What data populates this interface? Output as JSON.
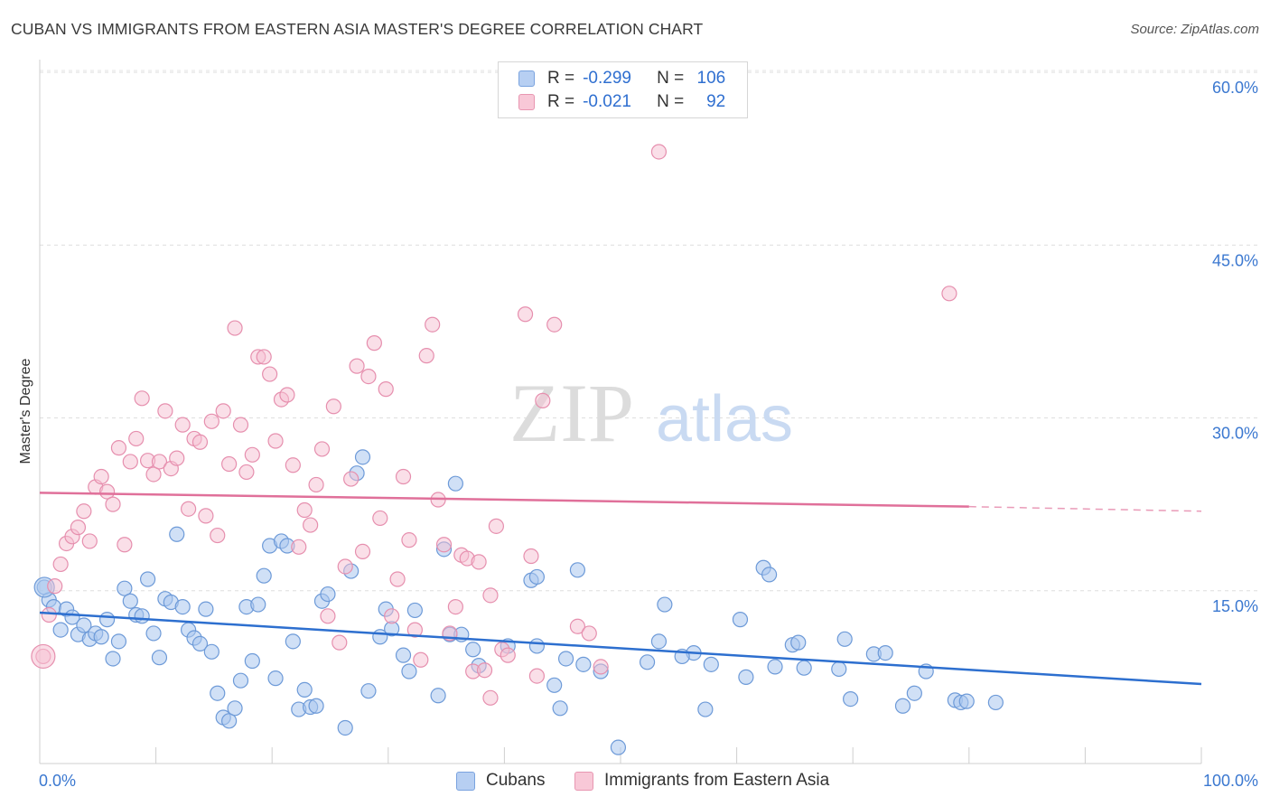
{
  "title": "CUBAN VS IMMIGRANTS FROM EASTERN ASIA MASTER'S DEGREE CORRELATION CHART",
  "source": "Source: ZipAtlas.com",
  "watermark": {
    "zip": "ZIP",
    "atlas": "atlas"
  },
  "legend": {
    "rows": [
      {
        "r_label": "R =",
        "r_value": "-0.299",
        "n_label": "N =",
        "n_value": "106"
      },
      {
        "r_label": "R =",
        "r_value": "-0.021",
        "n_label": "N =",
        "n_value": "92"
      }
    ]
  },
  "chart_data": {
    "type": "scatter",
    "ylabel": "Master's Degree",
    "xlim": [
      0,
      100
    ],
    "ylim": [
      0,
      60
    ],
    "x_ticks": [
      0,
      100
    ],
    "x_tick_labels": [
      "0.0%",
      "100.0%"
    ],
    "y_ticks": [
      15,
      30,
      45,
      60
    ],
    "y_tick_labels": [
      "15.0%",
      "30.0%",
      "45.0%",
      "60.0%"
    ],
    "grid": true,
    "colors": {
      "blue_fill": "#a9c6ef",
      "blue_stroke": "#6d9ad8",
      "blue_line": "#2d6fcf",
      "pink_fill": "#f6bfd1",
      "pink_stroke": "#e68fae",
      "pink_line": "#e0709a",
      "axis_text": "#3b78d0"
    },
    "series": [
      {
        "name": "Cubans",
        "color": "#2d6fcf",
        "trend": {
          "x0": 0,
          "y0": 13.1,
          "x1": 100,
          "y1": 6.9
        },
        "points": [
          [
            0.4,
            15.3
          ],
          [
            0.8,
            14.2
          ],
          [
            1.2,
            13.6
          ],
          [
            1.8,
            11.6
          ],
          [
            2.3,
            13.4
          ],
          [
            2.8,
            12.7
          ],
          [
            3.3,
            11.2
          ],
          [
            3.8,
            12.0
          ],
          [
            4.3,
            10.8
          ],
          [
            4.8,
            11.3
          ],
          [
            5.3,
            11.0
          ],
          [
            5.8,
            12.5
          ],
          [
            6.3,
            9.1
          ],
          [
            6.8,
            10.6
          ],
          [
            7.3,
            15.2
          ],
          [
            7.8,
            14.1
          ],
          [
            8.3,
            12.9
          ],
          [
            8.8,
            12.8
          ],
          [
            9.3,
            16.0
          ],
          [
            9.8,
            11.3
          ],
          [
            10.3,
            9.2
          ],
          [
            10.8,
            14.3
          ],
          [
            11.3,
            14.0
          ],
          [
            11.8,
            19.9
          ],
          [
            12.3,
            13.6
          ],
          [
            12.8,
            11.6
          ],
          [
            13.3,
            10.9
          ],
          [
            13.8,
            10.4
          ],
          [
            14.3,
            13.4
          ],
          [
            14.8,
            9.7
          ],
          [
            15.3,
            6.1
          ],
          [
            15.8,
            4.0
          ],
          [
            16.3,
            3.7
          ],
          [
            16.8,
            4.8
          ],
          [
            17.3,
            7.2
          ],
          [
            17.8,
            13.6
          ],
          [
            18.3,
            8.9
          ],
          [
            18.8,
            13.8
          ],
          [
            19.3,
            16.3
          ],
          [
            19.8,
            18.9
          ],
          [
            20.3,
            7.4
          ],
          [
            20.8,
            19.3
          ],
          [
            21.3,
            18.9
          ],
          [
            21.8,
            10.6
          ],
          [
            22.3,
            4.7
          ],
          [
            22.8,
            6.4
          ],
          [
            23.3,
            4.9
          ],
          [
            23.8,
            5.0
          ],
          [
            24.3,
            14.1
          ],
          [
            24.8,
            14.7
          ],
          [
            26.3,
            3.1
          ],
          [
            26.8,
            16.7
          ],
          [
            27.3,
            25.2
          ],
          [
            27.8,
            26.6
          ],
          [
            28.3,
            6.3
          ],
          [
            29.3,
            11.0
          ],
          [
            29.8,
            13.4
          ],
          [
            30.3,
            11.7
          ],
          [
            31.3,
            9.4
          ],
          [
            31.8,
            8.0
          ],
          [
            32.3,
            13.3
          ],
          [
            34.3,
            5.9
          ],
          [
            34.8,
            18.6
          ],
          [
            35.3,
            11.2
          ],
          [
            36.3,
            11.2
          ],
          [
            35.8,
            24.3
          ],
          [
            37.3,
            9.9
          ],
          [
            37.8,
            8.5
          ],
          [
            40.3,
            10.2
          ],
          [
            42.8,
            10.2
          ],
          [
            42.3,
            15.9
          ],
          [
            42.8,
            16.2
          ],
          [
            44.3,
            6.8
          ],
          [
            44.8,
            4.8
          ],
          [
            45.3,
            9.1
          ],
          [
            46.8,
            8.6
          ],
          [
            46.3,
            16.8
          ],
          [
            48.3,
            8.0
          ],
          [
            49.8,
            1.4
          ],
          [
            52.3,
            8.8
          ],
          [
            53.3,
            10.6
          ],
          [
            53.8,
            13.8
          ],
          [
            56.3,
            9.6
          ],
          [
            55.3,
            9.3
          ],
          [
            57.3,
            4.7
          ],
          [
            57.8,
            8.6
          ],
          [
            60.3,
            12.5
          ],
          [
            60.8,
            7.5
          ],
          [
            62.3,
            17.0
          ],
          [
            62.8,
            16.4
          ],
          [
            63.3,
            8.4
          ],
          [
            64.8,
            10.3
          ],
          [
            65.3,
            10.5
          ],
          [
            65.8,
            8.3
          ],
          [
            68.8,
            8.2
          ],
          [
            69.3,
            10.8
          ],
          [
            69.8,
            5.6
          ],
          [
            71.8,
            9.5
          ],
          [
            72.8,
            9.6
          ],
          [
            74.3,
            5.0
          ],
          [
            75.3,
            6.1
          ],
          [
            76.3,
            8.0
          ],
          [
            78.8,
            5.5
          ],
          [
            79.3,
            5.3
          ],
          [
            79.8,
            5.4
          ],
          [
            82.3,
            5.3
          ]
        ]
      },
      {
        "name": "Immigrants from Eastern Asia",
        "color": "#e0709a",
        "trend": {
          "x0": 0,
          "y0": 23.5,
          "x1": 80,
          "y1": 22.3,
          "dash_x1": 100,
          "dash_y1": 21.9
        },
        "points": [
          [
            0.3,
            9.3
          ],
          [
            0.8,
            12.9
          ],
          [
            1.3,
            15.4
          ],
          [
            1.8,
            17.3
          ],
          [
            2.3,
            19.1
          ],
          [
            2.8,
            19.7
          ],
          [
            3.3,
            20.5
          ],
          [
            3.8,
            21.9
          ],
          [
            4.3,
            19.3
          ],
          [
            4.8,
            24.0
          ],
          [
            5.3,
            24.9
          ],
          [
            5.8,
            23.6
          ],
          [
            6.3,
            22.5
          ],
          [
            6.8,
            27.4
          ],
          [
            7.3,
            19.0
          ],
          [
            7.8,
            26.2
          ],
          [
            8.3,
            28.2
          ],
          [
            8.8,
            31.7
          ],
          [
            9.3,
            26.3
          ],
          [
            9.8,
            25.1
          ],
          [
            10.3,
            26.2
          ],
          [
            10.8,
            30.6
          ],
          [
            11.3,
            25.6
          ],
          [
            11.8,
            26.5
          ],
          [
            12.3,
            29.4
          ],
          [
            12.8,
            22.1
          ],
          [
            13.3,
            28.2
          ],
          [
            13.8,
            27.9
          ],
          [
            14.3,
            21.5
          ],
          [
            14.8,
            29.7
          ],
          [
            15.3,
            19.8
          ],
          [
            15.8,
            30.6
          ],
          [
            16.3,
            26.0
          ],
          [
            16.8,
            37.8
          ],
          [
            17.3,
            29.4
          ],
          [
            17.8,
            25.3
          ],
          [
            18.3,
            26.8
          ],
          [
            18.8,
            35.3
          ],
          [
            19.3,
            35.3
          ],
          [
            19.8,
            33.8
          ],
          [
            20.3,
            28.0
          ],
          [
            20.8,
            31.6
          ],
          [
            21.3,
            32.0
          ],
          [
            21.8,
            25.9
          ],
          [
            22.3,
            18.8
          ],
          [
            22.8,
            22.0
          ],
          [
            23.3,
            20.7
          ],
          [
            23.8,
            24.2
          ],
          [
            24.3,
            27.3
          ],
          [
            24.8,
            12.8
          ],
          [
            25.3,
            31.0
          ],
          [
            25.8,
            10.5
          ],
          [
            26.3,
            17.1
          ],
          [
            26.8,
            24.7
          ],
          [
            27.3,
            34.5
          ],
          [
            27.8,
            18.4
          ],
          [
            28.3,
            33.6
          ],
          [
            28.8,
            36.5
          ],
          [
            29.3,
            21.3
          ],
          [
            29.8,
            32.5
          ],
          [
            30.3,
            12.8
          ],
          [
            30.8,
            16.0
          ],
          [
            31.3,
            24.9
          ],
          [
            31.8,
            19.4
          ],
          [
            32.3,
            11.6
          ],
          [
            32.8,
            9.0
          ],
          [
            33.3,
            35.4
          ],
          [
            33.8,
            38.1
          ],
          [
            34.3,
            22.9
          ],
          [
            34.8,
            19.0
          ],
          [
            35.3,
            11.3
          ],
          [
            35.8,
            13.6
          ],
          [
            36.3,
            18.1
          ],
          [
            36.8,
            17.8
          ],
          [
            37.3,
            8.0
          ],
          [
            37.8,
            17.5
          ],
          [
            38.3,
            8.1
          ],
          [
            38.8,
            5.7
          ],
          [
            39.3,
            20.6
          ],
          [
            39.8,
            9.9
          ],
          [
            40.3,
            9.4
          ],
          [
            41.8,
            39.0
          ],
          [
            42.3,
            18.0
          ],
          [
            43.3,
            31.5
          ],
          [
            44.3,
            38.1
          ],
          [
            46.3,
            11.9
          ],
          [
            47.3,
            11.3
          ],
          [
            48.3,
            8.4
          ],
          [
            53.3,
            53.1
          ],
          [
            78.3,
            40.8
          ],
          [
            42.8,
            7.6
          ],
          [
            38.8,
            14.6
          ]
        ]
      }
    ]
  },
  "bottom_legend": [
    {
      "label": "Cubans"
    },
    {
      "label": "Immigrants from Eastern Asia"
    }
  ]
}
